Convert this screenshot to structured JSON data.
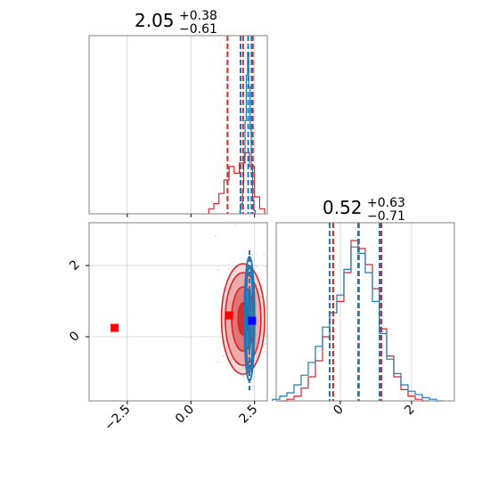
{
  "colors": {
    "primary": "#d62728",
    "secondary": "#1f77b4",
    "marker_primary": "#ff0000",
    "marker_secondary": "#0000ff",
    "grid": "#d0d0d0",
    "axes": "#7f7f7f"
  },
  "chart_data": {
    "type": "corner",
    "grid": true,
    "parameters": [
      {
        "title_value": "2.05",
        "title_plus": "+0.38",
        "title_minus": "−0.61",
        "range": [
          -4.0,
          3.0
        ],
        "ticks": [
          {
            "value": -2.5,
            "label": "−2.5"
          },
          {
            "value": 0.0,
            "label": "0.0"
          },
          {
            "value": 2.5,
            "label": "2.5"
          }
        ],
        "quantiles_primary": [
          1.44,
          2.05,
          2.43
        ],
        "quantiles_secondary": [
          1.95,
          2.25,
          2.38
        ],
        "hist_primary": {
          "x": [
            0.8,
            1.0,
            1.2,
            1.4,
            1.6,
            1.8,
            2.0,
            2.2,
            2.4,
            2.6,
            2.8
          ],
          "counts": [
            0.03,
            0.06,
            0.12,
            0.2,
            0.28,
            0.24,
            0.3,
            0.36,
            0.28,
            0.1,
            0.03
          ]
        },
        "hist_secondary": {
          "x": [
            1.95,
            2.0,
            2.05,
            2.1,
            2.15,
            2.2,
            2.25,
            2.3,
            2.35,
            2.4,
            2.45,
            2.5
          ],
          "counts": [
            0.02,
            0.06,
            0.14,
            0.3,
            0.55,
            0.82,
            0.95,
            0.75,
            0.5,
            0.26,
            0.08,
            0.02
          ]
        }
      },
      {
        "title_value": "0.52",
        "title_plus": "+0.63",
        "title_minus": "−0.71",
        "range": [
          -1.8,
          3.2
        ],
        "ticks": [
          {
            "value": 0,
            "label": "0"
          },
          {
            "value": 2,
            "label": "2"
          }
        ],
        "quantiles_primary": [
          -0.2,
          0.52,
          1.15
        ],
        "quantiles_secondary": [
          -0.3,
          0.5,
          1.1
        ],
        "hist_primary": {
          "x": [
            -1.6,
            -1.4,
            -1.2,
            -1.0,
            -0.8,
            -0.6,
            -0.4,
            -0.2,
            0.0,
            0.2,
            0.4,
            0.6,
            0.8,
            1.0,
            1.2,
            1.4,
            1.6,
            1.8,
            2.0,
            2.2,
            2.4
          ],
          "counts": [
            0.0,
            0.01,
            0.03,
            0.08,
            0.15,
            0.25,
            0.4,
            0.55,
            0.62,
            0.8,
            1.0,
            0.95,
            0.85,
            0.7,
            0.45,
            0.28,
            0.15,
            0.07,
            0.03,
            0.01,
            0.0
          ]
        },
        "hist_secondary": {
          "x": [
            -1.8,
            -1.6,
            -1.4,
            -1.2,
            -1.0,
            -0.8,
            -0.6,
            -0.4,
            -0.2,
            0.0,
            0.2,
            0.4,
            0.6,
            0.8,
            1.0,
            1.2,
            1.4,
            1.6,
            1.8,
            2.0,
            2.2,
            2.4,
            2.6,
            2.8
          ],
          "counts": [
            0.01,
            0.03,
            0.05,
            0.1,
            0.16,
            0.24,
            0.34,
            0.46,
            0.55,
            0.66,
            0.82,
            0.96,
            0.92,
            0.8,
            0.62,
            0.42,
            0.26,
            0.17,
            0.1,
            0.06,
            0.04,
            0.02,
            0.01,
            0.0
          ]
        }
      }
    ],
    "joint": {
      "primary_ellipses": [
        {
          "cx": 2.05,
          "cy": 0.5,
          "rx": 0.2,
          "ry": 0.45
        },
        {
          "cx": 2.05,
          "cy": 0.5,
          "rx": 0.45,
          "ry": 0.9
        },
        {
          "cx": 2.05,
          "cy": 0.5,
          "rx": 0.7,
          "ry": 1.3
        },
        {
          "cx": 2.05,
          "cy": 0.5,
          "rx": 0.85,
          "ry": 1.55
        }
      ],
      "secondary_ellipses": [
        {
          "cx": 2.3,
          "cy": 0.5,
          "rx": 0.06,
          "ry": 0.9
        },
        {
          "cx": 2.3,
          "cy": 0.5,
          "rx": 0.14,
          "ry": 1.5
        },
        {
          "cx": 2.3,
          "cy": 0.5,
          "rx": 0.2,
          "ry": 1.75
        }
      ],
      "markers": [
        {
          "name": "marker-primary-far",
          "x": -3.0,
          "y": 0.25,
          "color": "#ff0000"
        },
        {
          "name": "marker-primary",
          "x": 1.5,
          "y": 0.6,
          "color": "#ff0000"
        },
        {
          "name": "marker-secondary",
          "x": 2.4,
          "y": 0.45,
          "color": "#0000ff"
        }
      ]
    }
  }
}
